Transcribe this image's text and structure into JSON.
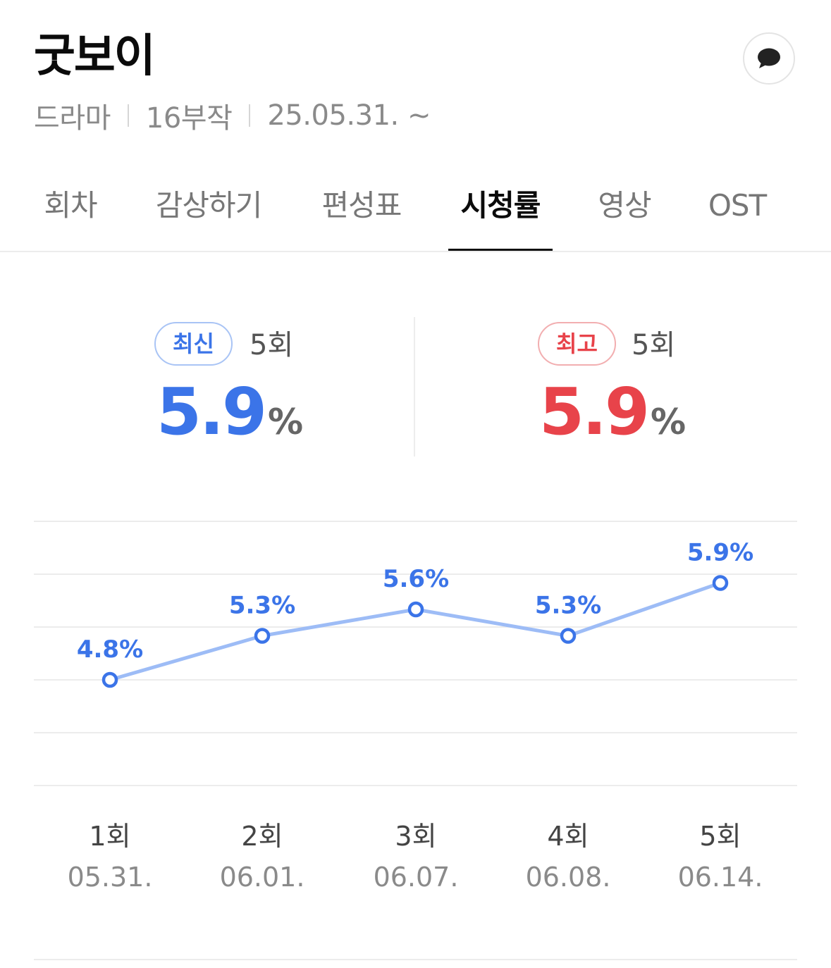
{
  "header": {
    "title": "굿보이",
    "meta": [
      "드라마",
      "16부작",
      "25.05.31. ~"
    ]
  },
  "icons": {
    "comment": "speech-bubble-icon"
  },
  "tabs": [
    {
      "label": "회차"
    },
    {
      "label": "감상하기"
    },
    {
      "label": "편성표"
    },
    {
      "label": "시청률",
      "active": true
    },
    {
      "label": "영상"
    },
    {
      "label": "OST"
    }
  ],
  "stats": {
    "latest": {
      "badge": "최신",
      "episode": "5회",
      "value": "5.9",
      "unit": "%"
    },
    "highest": {
      "badge": "최고",
      "episode": "5회",
      "value": "5.9",
      "unit": "%"
    }
  },
  "colors": {
    "accent_blue": "#3b74e8",
    "accent_red": "#e8434a",
    "line": "#9dbcf6"
  },
  "chart_data": {
    "type": "line",
    "categories": [
      "1회",
      "2회",
      "3회",
      "4회",
      "5회"
    ],
    "dates": [
      "05.31.",
      "06.01.",
      "06.07.",
      "06.08.",
      "06.14."
    ],
    "values": [
      4.8,
      5.3,
      5.6,
      5.3,
      5.9
    ],
    "value_labels": [
      "4.8%",
      "5.3%",
      "5.6%",
      "5.3%",
      "5.9%"
    ],
    "ylim": [
      3.6,
      6.6
    ],
    "grid": true
  }
}
